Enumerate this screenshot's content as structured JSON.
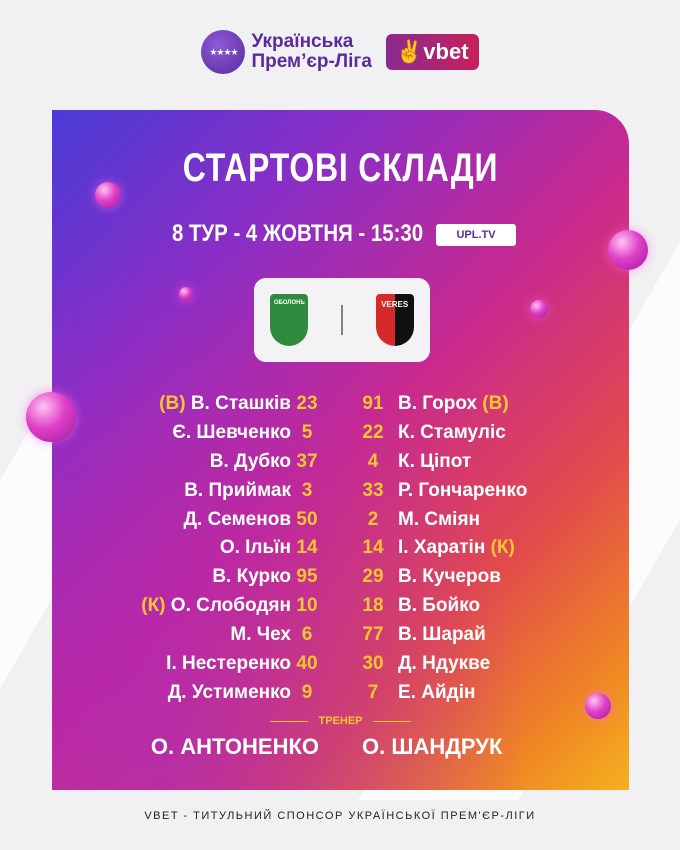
{
  "header": {
    "league_line1": "Українська",
    "league_line2": "Прем’єр-Ліга",
    "sponsor": "vbet"
  },
  "title": "СТАРТОВІ СКЛАДИ",
  "match_info": "8 ТУР - 4 ЖОВТНЯ - 15:30",
  "broadcaster": "UPL.TV",
  "home_team": {
    "crest_text": "ОБОЛОНЬ",
    "color": "#2e8b3e"
  },
  "away_team": {
    "crest_text": "VERES",
    "color": "#d62a2a"
  },
  "home_lineup": [
    {
      "prefix": "(В)",
      "name": "В. Сташків",
      "number": "23"
    },
    {
      "prefix": "",
      "name": "Є. Шевченко",
      "number": "5"
    },
    {
      "prefix": "",
      "name": "В. Дубко",
      "number": "37"
    },
    {
      "prefix": "",
      "name": "В. Приймак",
      "number": "3"
    },
    {
      "prefix": "",
      "name": "Д. Семенов",
      "number": "50"
    },
    {
      "prefix": "",
      "name": "О. Ільїн",
      "number": "14"
    },
    {
      "prefix": "",
      "name": "В. Курко",
      "number": "95"
    },
    {
      "prefix": "(К)",
      "name": "О. Слободян",
      "number": "10"
    },
    {
      "prefix": "",
      "name": "М. Чех",
      "number": "6"
    },
    {
      "prefix": "",
      "name": "І. Нестеренко",
      "number": "40"
    },
    {
      "prefix": "",
      "name": "Д. Устименко",
      "number": "9"
    }
  ],
  "away_lineup": [
    {
      "number": "91",
      "name": "В. Горох",
      "suffix": "(В)"
    },
    {
      "number": "22",
      "name": "К. Стамуліс",
      "suffix": ""
    },
    {
      "number": "4",
      "name": "К. Ціпот",
      "suffix": ""
    },
    {
      "number": "33",
      "name": "Р. Гончаренко",
      "suffix": ""
    },
    {
      "number": "2",
      "name": "М. Сміян",
      "suffix": ""
    },
    {
      "number": "14",
      "name": "І. Харатін",
      "suffix": "(К)"
    },
    {
      "number": "29",
      "name": "В. Кучеров",
      "suffix": ""
    },
    {
      "number": "18",
      "name": "В. Бойко",
      "suffix": ""
    },
    {
      "number": "77",
      "name": "В. Шарай",
      "suffix": ""
    },
    {
      "number": "30",
      "name": "Д. Ндукве",
      "suffix": ""
    },
    {
      "number": "7",
      "name": "Е. Айдін",
      "suffix": ""
    }
  ],
  "coach_label": "ТРЕНЕР",
  "home_coach": "О. АНТОНЕНКО",
  "away_coach": "О. ШАНДРУК",
  "footer": "VBET - ТИТУЛЬНИЙ СПОНСОР УКРАЇНСЬКОЇ ПРЕМ'ЄР-ЛІГИ"
}
